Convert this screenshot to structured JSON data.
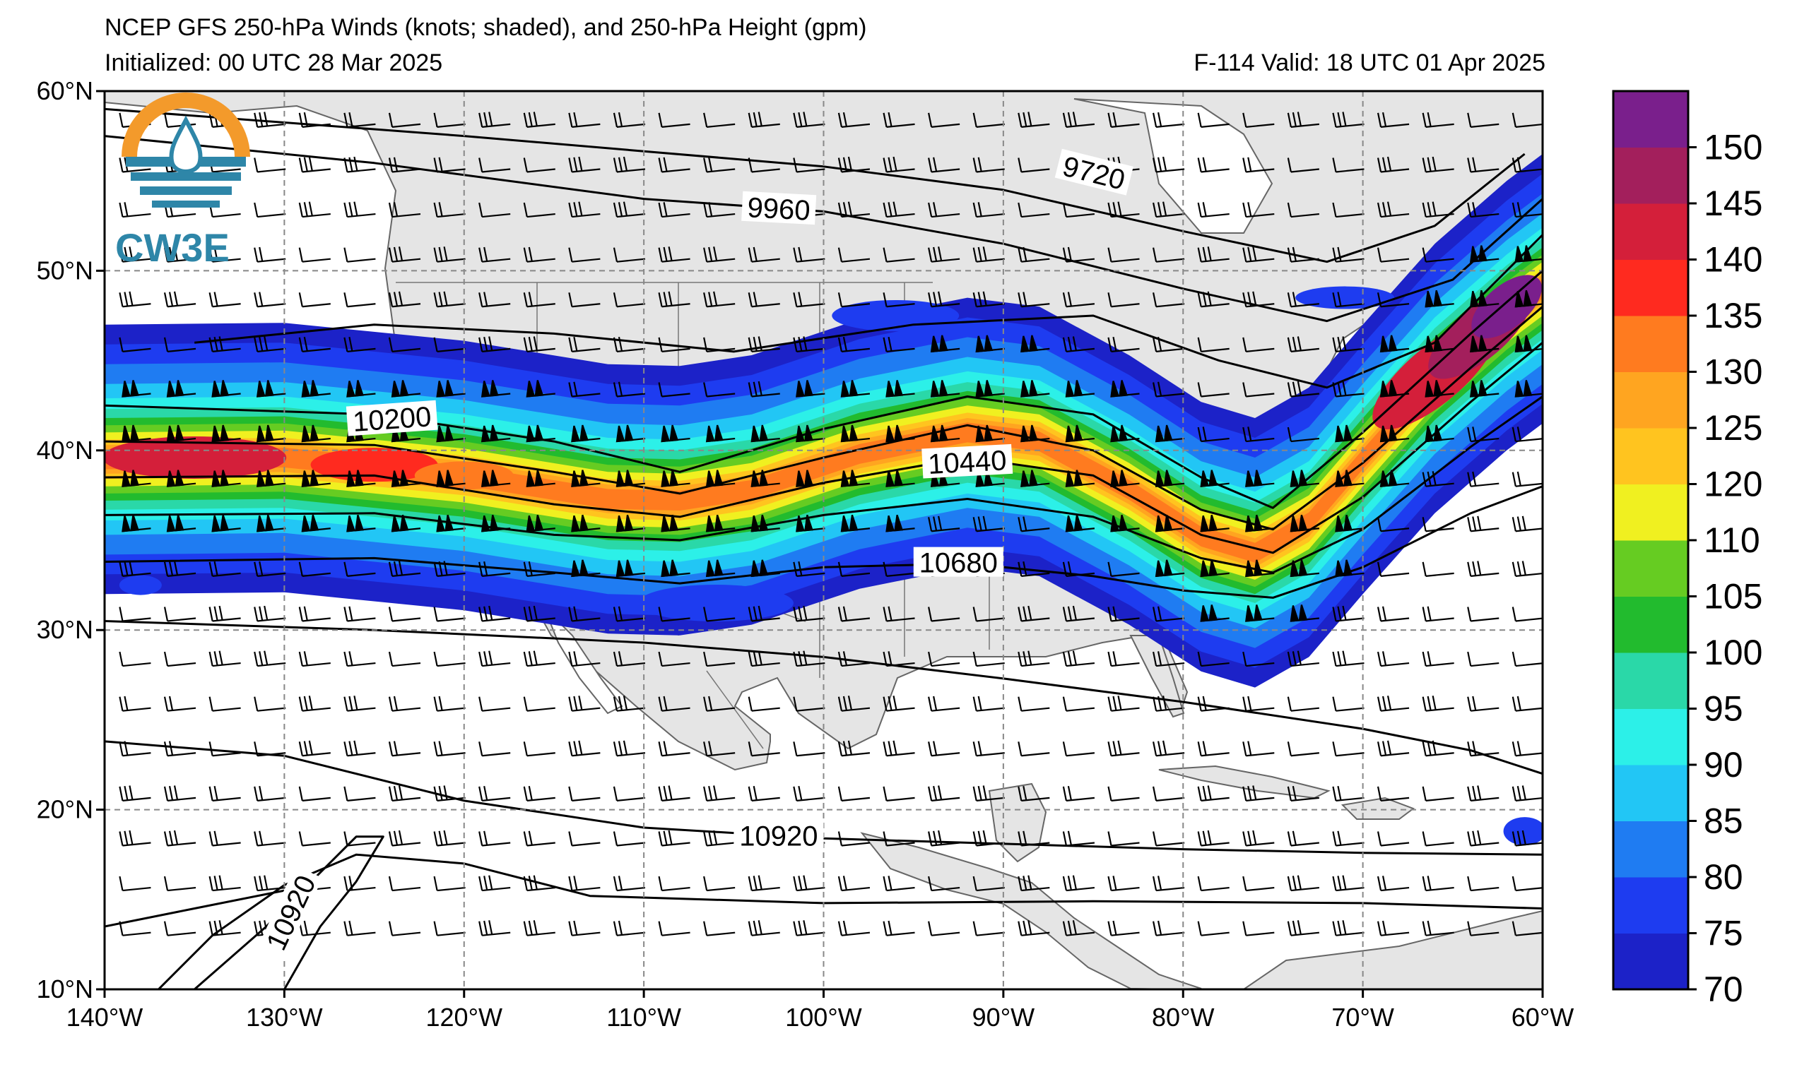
{
  "header": {
    "title": "NCEP GFS 250-hPa Winds (knots; shaded), and 250-hPa Height (gpm)",
    "initialized": "Initialized: 00 UTC 28 Mar 2025",
    "valid": "F-114  Valid: 18 UTC 01 Apr 2025"
  },
  "logo": {
    "text": "CW3E",
    "colors": {
      "sun": "#f39a2b",
      "water": "#2e86a8",
      "drop": "#2e86a8"
    }
  },
  "map": {
    "lon_range": [
      -140,
      -60
    ],
    "lat_range": [
      10,
      60
    ],
    "lon_ticks": [
      {
        "lon": -140,
        "label": "140°W"
      },
      {
        "lon": -130,
        "label": "130°W"
      },
      {
        "lon": -120,
        "label": "120°W"
      },
      {
        "lon": -110,
        "label": "110°W"
      },
      {
        "lon": -100,
        "label": "100°W"
      },
      {
        "lon": -90,
        "label": "90°W"
      },
      {
        "lon": -80,
        "label": "80°W"
      },
      {
        "lon": -70,
        "label": "70°W"
      },
      {
        "lon": -60,
        "label": "60°W"
      }
    ],
    "lat_ticks": [
      {
        "lat": 60,
        "label": "60°N"
      },
      {
        "lat": 50,
        "label": "50°N"
      },
      {
        "lat": 40,
        "label": "40°N"
      },
      {
        "lat": 30,
        "label": "30°N"
      },
      {
        "lat": 20,
        "label": "20°N"
      },
      {
        "lat": 10,
        "label": "10°N"
      }
    ],
    "grid": "dashed",
    "land_color": "#e5e5e5",
    "ocean_color": "#ffffff",
    "height_labels": [
      {
        "text": "9720",
        "lon": -85,
        "lat": 55.3
      },
      {
        "text": "9960",
        "lon": -102.5,
        "lat": 53.3
      },
      {
        "text": "10200",
        "lon": -124,
        "lat": 41.6
      },
      {
        "text": "10440",
        "lon": -92,
        "lat": 39.2
      },
      {
        "text": "10680",
        "lon": -92.5,
        "lat": 33.6
      },
      {
        "text": "10920",
        "lon": -102.5,
        "lat": 18.4
      },
      {
        "text": "10920",
        "lon": -129.5,
        "lat": 14.2
      }
    ]
  },
  "colorbar": {
    "levels": [
      70,
      75,
      80,
      85,
      90,
      95,
      100,
      105,
      110,
      120,
      125,
      130,
      135,
      140,
      145,
      150,
      155
    ],
    "labels": [
      "70",
      "75",
      "80",
      "85",
      "90",
      "95",
      "100",
      "105",
      "110",
      "120",
      "125",
      "130",
      "135",
      "140",
      "145",
      "150"
    ],
    "colors": [
      "#1c22c8",
      "#1e3cf0",
      "#1f7cf2",
      "#22c6f5",
      "#2cf0e8",
      "#2ad8a8",
      "#22bb2e",
      "#66cc22",
      "#f0f020",
      "#ffc41f",
      "#ffa520",
      "#ff7b1f",
      "#ff2a1f",
      "#d41f3a",
      "#a31f5c",
      "#7a1f8c"
    ]
  }
}
